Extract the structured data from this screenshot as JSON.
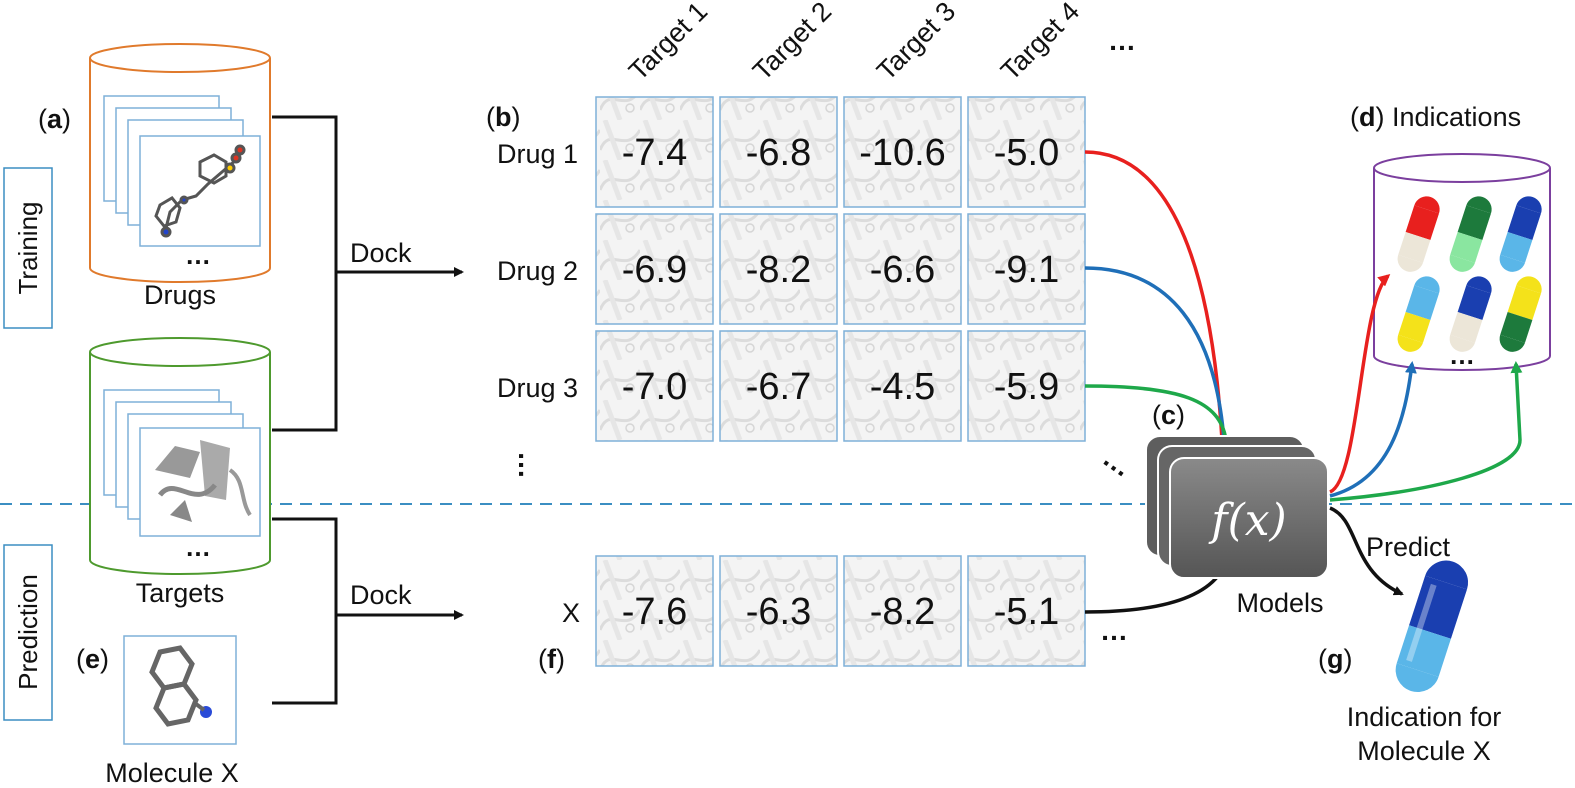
{
  "side_labels": {
    "training": "Training",
    "prediction": "Prediction"
  },
  "panels": {
    "a": "a",
    "b": "b",
    "c": "c",
    "d": "d",
    "e": "e",
    "f": "f",
    "g": "g"
  },
  "drugs_label": "Drugs",
  "targets_label": "Targets",
  "molecule_label": "Molecule X",
  "dock_label": "Dock",
  "ellipsis": "…",
  "target_headers": [
    "Target 1",
    "Target 2",
    "Target 3",
    "Target 4"
  ],
  "drug_rows": [
    {
      "name": "Drug 1",
      "values": [
        "-7.4",
        "-6.8",
        "-10.6",
        "-5.0"
      ]
    },
    {
      "name": "Drug 2",
      "values": [
        "-6.9",
        "-8.2",
        "-6.6",
        "-9.1"
      ]
    },
    {
      "name": "Drug 3",
      "values": [
        "-7.0",
        "-6.7",
        "-4.5",
        "-5.9"
      ]
    }
  ],
  "prediction_row": {
    "name": "X",
    "values": [
      "-7.6",
      "-6.3",
      "-8.2",
      "-5.1"
    ]
  },
  "model_function": "f(x)",
  "models_label": "Models",
  "indications_label": "Indications",
  "predict_label": "Predict",
  "indication_result": [
    "Indication for",
    "Molecule X"
  ],
  "colors": {
    "drugs_db": "#e07a2c",
    "targets_db": "#4e9a2e",
    "indications_db": "#7b3f9e",
    "cell_border": "#7fb0d8",
    "red": "#e8201e",
    "blue": "#1f6fb8",
    "green": "#1ea84a",
    "dashed": "#3b8ec2",
    "model": "#6a6a6a"
  }
}
